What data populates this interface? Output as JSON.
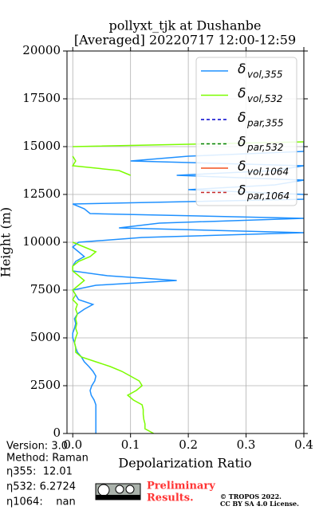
{
  "chart_data": {
    "type": "line",
    "title": "pollyxt_tjk at Dushanbe",
    "subtitle": "[Averaged] 20220717 12:00-12:59",
    "x_label": "Depolarization Ratio",
    "y_label": "Height (m)",
    "xlim": [
      -0.01,
      0.4
    ],
    "xticks": [
      {
        "value": 0,
        "label": "0.0"
      },
      0.1,
      0.2,
      0.3,
      0.4
    ],
    "ylim": [
      0,
      20000
    ],
    "yticks": [
      0,
      2500,
      5000,
      7500,
      10000,
      12500,
      15000,
      17500,
      20000
    ],
    "grid": true,
    "legend": "upper right",
    "heights": [
      0,
      250,
      500,
      750,
      1000,
      1250,
      1500,
      1750,
      2000,
      2250,
      2500,
      2750,
      3000,
      3250,
      3500,
      3750,
      4000,
      4250,
      4500,
      4750,
      5000,
      5250,
      5500,
      5750,
      6000,
      6250,
      6500,
      6750,
      7000,
      7250,
      7500,
      7750,
      8000,
      8250,
      8500,
      8750,
      9000,
      9250,
      9500,
      9750,
      10000,
      10250,
      10500,
      10750,
      11000,
      11250,
      11500,
      11750,
      12000,
      12250,
      12500,
      12750,
      13000,
      13250,
      13500,
      13750,
      14000,
      14250,
      14500,
      14750,
      15000,
      15250
    ],
    "series": [
      {
        "symbol": "δ",
        "name": "vol,355",
        "color": "#1e90ff",
        "dash": false,
        "values": [
          0.04,
          0.04,
          0.04,
          0.04,
          0.04,
          0.04,
          0.04,
          0.037,
          0.032,
          0.03,
          0.033,
          0.038,
          0.04,
          0.035,
          0.028,
          0.02,
          0.015,
          0.008,
          0.005,
          0.003,
          0,
          0,
          0.003,
          0.005,
          0.003,
          0.008,
          0.02,
          0.035,
          0.01,
          0.005,
          0,
          0.04,
          0.18,
          0.06,
          0,
          0,
          0.005,
          0.02,
          0.01,
          0,
          0.01,
          0.12,
          0.4,
          0.08,
          0.15,
          0.4,
          0.03,
          0.02,
          0,
          0.4,
          0.4,
          0.2,
          0.35,
          0.4,
          0.18,
          0.35,
          0.4,
          0.1,
          0.2,
          0.4,
          0.4,
          0.4
        ]
      },
      {
        "symbol": "δ",
        "name": "vol,532",
        "color": "#7cfc00",
        "dash": false,
        "values": [
          0.14,
          0.125,
          0.125,
          0.123,
          0.122,
          0.122,
          0.12,
          0.105,
          0.095,
          0.11,
          0.12,
          0.115,
          0.1,
          0.085,
          0.065,
          0.04,
          0.015,
          0.005,
          0.005,
          0.003,
          0.005,
          0.008,
          0.005,
          0.007,
          0.005,
          0.008,
          0.005,
          0.008,
          0,
          0.005,
          0,
          0.01,
          0.02,
          0.01,
          0,
          0,
          0.01,
          0.03,
          0.04,
          0.02,
          0,
          null,
          null,
          null,
          null,
          null,
          null,
          null,
          null,
          null,
          null,
          null,
          null,
          null,
          0.1,
          0.08,
          0,
          0.005,
          0,
          null,
          0,
          0.4
        ]
      },
      {
        "symbol": "δ",
        "name": "par,355",
        "color": "#0000cd",
        "dash": true,
        "values": []
      },
      {
        "symbol": "δ",
        "name": "par,532",
        "color": "#008000",
        "dash": true,
        "values": []
      },
      {
        "symbol": "δ",
        "name": "vol,1064",
        "color": "#f4511e",
        "dash": false,
        "values": []
      },
      {
        "symbol": "δ",
        "name": "par,1064",
        "color": "#c62828",
        "dash": true,
        "values": []
      }
    ],
    "notes": [
      "Version: 3.0",
      "Method: Raman",
      "η355:  12.01",
      "η532: 6.2724",
      "η1064:    nan"
    ],
    "preliminary": [
      "Preliminary",
      "Results."
    ],
    "license": [
      "© TROPOS 2022.",
      "CC BY SA 4.0 License."
    ]
  }
}
